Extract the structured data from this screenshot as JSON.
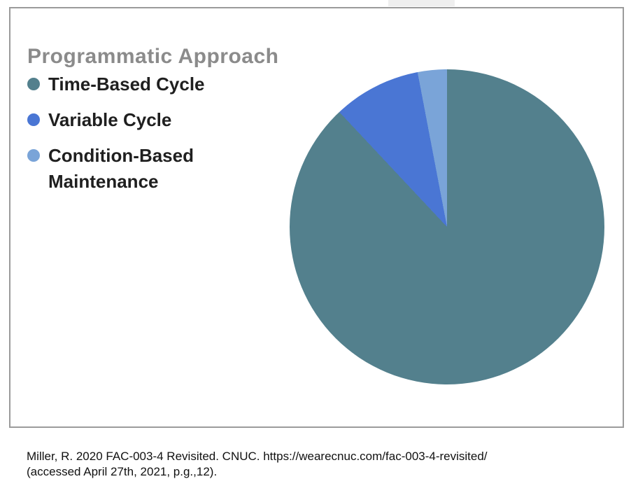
{
  "page": {
    "background": "#ffffff",
    "frame_border_color": "#9b9b9b"
  },
  "chart_data": {
    "type": "pie",
    "title": "Programmatic Approach",
    "categories": [
      "Time-Based Cycle",
      "Variable Cycle",
      "Condition-Based Maintenance"
    ],
    "values": [
      88,
      9,
      3
    ],
    "value_unit": "percent (estimated from slice angles)",
    "colors": [
      "#53808d",
      "#4a76d4",
      "#7aa4d8"
    ],
    "start_angle_deg": 0,
    "direction": "clockwise",
    "legend_position": "left",
    "data_labels_shown": false
  },
  "title": {
    "color": "#8b8b8b"
  },
  "legend": {
    "items": [
      {
        "label": "Time-Based Cycle",
        "color": "#53808d"
      },
      {
        "label": "Variable Cycle",
        "color": "#4a76d4"
      },
      {
        "label": "Condition-Based\nMaintenance",
        "color": "#7aa4d8"
      }
    ]
  },
  "citation": {
    "line1": "Miller, R. 2020 FAC-003-4 Revisited. CNUC. https://wearecnuc.com/fac-003-4-revisited/",
    "line2": "(accessed April 27th, 2021, p.g.,12)."
  }
}
